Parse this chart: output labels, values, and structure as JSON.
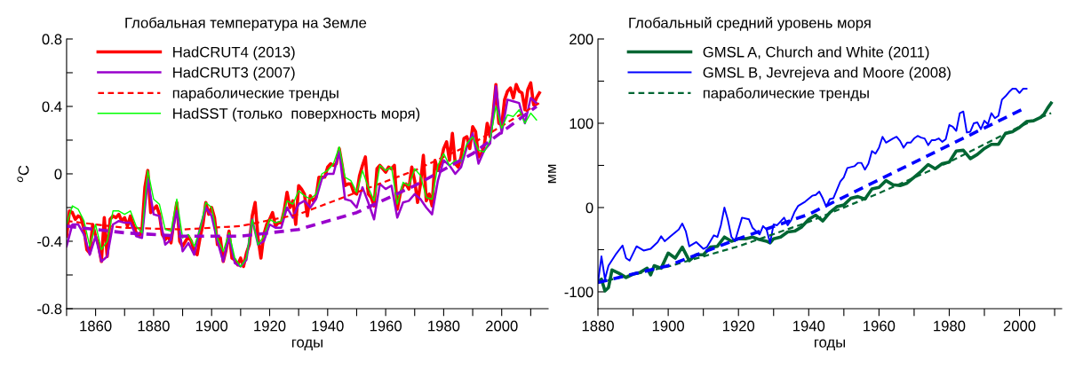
{
  "chart_data": [
    {
      "type": "line",
      "title": "Глобальная температура на Земле",
      "xlabel": "годы",
      "ylabel": "$^{o}$C",
      "xlim": [
        1850,
        2016
      ],
      "ylim": [
        -0.8,
        0.8
      ],
      "xticks": [
        {
          "value": 1850,
          "label": null
        },
        1860,
        {
          "value": 1870,
          "label": null
        },
        1880,
        {
          "value": 1890,
          "label": null
        },
        1900,
        {
          "value": 1910,
          "label": null
        },
        1920,
        {
          "value": 1930,
          "label": null
        },
        1940,
        {
          "value": 1950,
          "label": null
        },
        1960,
        {
          "value": 1970,
          "label": null
        },
        1980,
        {
          "value": 1990,
          "label": null
        },
        2000,
        {
          "value": 2010,
          "label": null
        }
      ],
      "yticks": [
        {
          "value": -0.8,
          "label": "-0.8"
        },
        {
          "value": -0.6,
          "label": null
        },
        {
          "value": -0.4,
          "label": "-0.4"
        },
        {
          "value": -0.2,
          "label": null
        },
        {
          "value": 0,
          "label": "0"
        },
        {
          "value": 0.2,
          "label": null
        },
        {
          "value": 0.4,
          "label": "0.4"
        },
        {
          "value": 0.6,
          "label": null
        },
        {
          "value": 0.8,
          "label": "0.8"
        }
      ],
      "grid": false,
      "legend": "top left",
      "series": [
        {
          "name": "HadCRUT4 (2013)",
          "color": "#ff0000",
          "line_style": "solid",
          "x": [
            1850,
            1851,
            1852,
            1853,
            1854,
            1855,
            1856,
            1857,
            1858,
            1859,
            1860,
            1861,
            1862,
            1863,
            1864,
            1865,
            1866,
            1867,
            1868,
            1869,
            1870,
            1871,
            1872,
            1873,
            1874,
            1875,
            1876,
            1877,
            1878,
            1879,
            1880,
            1881,
            1882,
            1883,
            1884,
            1885,
            1886,
            1887,
            1888,
            1889,
            1890,
            1891,
            1892,
            1893,
            1894,
            1895,
            1896,
            1897,
            1898,
            1899,
            1900,
            1901,
            1902,
            1903,
            1904,
            1905,
            1906,
            1907,
            1908,
            1909,
            1910,
            1911,
            1912,
            1913,
            1914,
            1915,
            1916,
            1917,
            1918,
            1919,
            1920,
            1921,
            1922,
            1923,
            1924,
            1925,
            1926,
            1927,
            1928,
            1929,
            1930,
            1931,
            1932,
            1933,
            1934,
            1935,
            1936,
            1937,
            1938,
            1939,
            1940,
            1941,
            1942,
            1943,
            1944,
            1945,
            1946,
            1947,
            1948,
            1949,
            1950,
            1951,
            1952,
            1953,
            1954,
            1955,
            1956,
            1957,
            1958,
            1959,
            1960,
            1961,
            1962,
            1963,
            1964,
            1965,
            1966,
            1967,
            1968,
            1969,
            1970,
            1971,
            1972,
            1973,
            1974,
            1975,
            1976,
            1977,
            1978,
            1979,
            1980,
            1981,
            1982,
            1983,
            1984,
            1985,
            1986,
            1987,
            1988,
            1989,
            1990,
            1991,
            1992,
            1993,
            1994,
            1995,
            1996,
            1997,
            1998,
            1999,
            2000,
            2001,
            2002,
            2003,
            2004,
            2005,
            2006,
            2007,
            2008,
            2009,
            2010,
            2011,
            2012,
            2013
          ],
          "values": [
            -0.37,
            -0.22,
            -0.23,
            -0.27,
            -0.25,
            -0.26,
            -0.33,
            -0.45,
            -0.47,
            -0.3,
            -0.37,
            -0.42,
            -0.52,
            -0.26,
            -0.49,
            -0.27,
            -0.25,
            -0.26,
            -0.24,
            -0.28,
            -0.26,
            -0.31,
            -0.25,
            -0.3,
            -0.35,
            -0.37,
            -0.33,
            -0.08,
            0.02,
            -0.23,
            -0.21,
            -0.19,
            -0.24,
            -0.36,
            -0.39,
            -0.37,
            -0.41,
            -0.28,
            -0.17,
            -0.4,
            -0.43,
            -0.4,
            -0.37,
            -0.4,
            -0.46,
            -0.48,
            -0.38,
            -0.3,
            -0.17,
            -0.24,
            -0.2,
            -0.26,
            -0.42,
            -0.38,
            -0.52,
            -0.45,
            -0.34,
            -0.5,
            -0.51,
            -0.54,
            -0.5,
            -0.55,
            -0.47,
            -0.42,
            -0.25,
            -0.17,
            -0.38,
            -0.5,
            -0.36,
            -0.3,
            -0.27,
            -0.23,
            -0.31,
            -0.29,
            -0.29,
            -0.22,
            -0.11,
            -0.2,
            -0.16,
            -0.3,
            -0.07,
            -0.09,
            -0.12,
            -0.25,
            -0.13,
            -0.16,
            -0.14,
            -0.02,
            -0.02,
            -0.02,
            0.04,
            0.06,
            0.05,
            0.06,
            0.15,
            0.05,
            -0.07,
            -0.06,
            -0.06,
            -0.11,
            -0.12,
            -0.01,
            0.05,
            0.1,
            -0.12,
            -0.14,
            -0.19,
            0.03,
            0.05,
            0.03,
            0.01,
            0.04,
            0.03,
            0.05,
            -0.21,
            -0.12,
            -0.07,
            -0.06,
            -0.09,
            0.04,
            -0.04,
            -0.17,
            -0.06,
            0.11,
            -0.16,
            -0.12,
            -0.19,
            0.08,
            0.02,
            0.07,
            0.15,
            0.19,
            0.08,
            0.24,
            0.06,
            0.04,
            0.1,
            0.21,
            0.22,
            0.15,
            0.28,
            0.25,
            0.1,
            0.12,
            0.17,
            0.3,
            0.22,
            0.35,
            0.53,
            0.3,
            0.29,
            0.44,
            0.49,
            0.51,
            0.45,
            0.53,
            0.49,
            0.48,
            0.38,
            0.5,
            0.54,
            0.41,
            0.45,
            0.48
          ]
        },
        {
          "name": "HadCRUT3 (2007)",
          "color": "#9900cc",
          "line_style": "solid",
          "x": [
            1850,
            1852,
            1854,
            1856,
            1858,
            1860,
            1862,
            1864,
            1866,
            1868,
            1870,
            1872,
            1874,
            1876,
            1878,
            1880,
            1882,
            1884,
            1886,
            1888,
            1890,
            1892,
            1894,
            1896,
            1898,
            1900,
            1902,
            1904,
            1906,
            1908,
            1910,
            1912,
            1914,
            1916,
            1918,
            1920,
            1922,
            1924,
            1926,
            1928,
            1930,
            1932,
            1934,
            1936,
            1938,
            1940,
            1942,
            1944,
            1946,
            1948,
            1950,
            1952,
            1954,
            1956,
            1958,
            1960,
            1962,
            1964,
            1966,
            1968,
            1970,
            1972,
            1974,
            1976,
            1978,
            1980,
            1982,
            1984,
            1986,
            1988,
            1990,
            1992,
            1994,
            1996,
            1998,
            2000,
            2002,
            2004,
            2006,
            2008,
            2010,
            2012
          ],
          "values": [
            -0.43,
            -0.3,
            -0.3,
            -0.36,
            -0.48,
            -0.37,
            -0.52,
            -0.49,
            -0.3,
            -0.28,
            -0.29,
            -0.29,
            -0.37,
            -0.38,
            -0.03,
            -0.24,
            -0.25,
            -0.42,
            -0.39,
            -0.22,
            -0.46,
            -0.41,
            -0.48,
            -0.32,
            -0.2,
            -0.25,
            -0.4,
            -0.52,
            -0.37,
            -0.53,
            -0.55,
            -0.51,
            -0.27,
            -0.42,
            -0.4,
            -0.3,
            -0.32,
            -0.32,
            -0.2,
            -0.26,
            -0.18,
            -0.16,
            -0.2,
            -0.15,
            -0.03,
            0.0,
            0.0,
            0.13,
            -0.15,
            -0.16,
            -0.2,
            -0.08,
            -0.17,
            -0.27,
            -0.06,
            -0.09,
            -0.07,
            -0.26,
            -0.17,
            -0.16,
            -0.12,
            -0.15,
            -0.2,
            -0.24,
            -0.04,
            0.08,
            0.05,
            0.0,
            0.04,
            0.16,
            0.24,
            0.06,
            0.14,
            0.18,
            0.52,
            0.24,
            0.44,
            0.43,
            0.42,
            0.3,
            0.45,
            0.42
          ]
        },
        {
          "name": "параболические тренды",
          "color": "#ff0000",
          "line_style": "dashed",
          "x": [
            1850,
            1870,
            1890,
            1910,
            1930,
            1950,
            1970,
            1990,
            2013
          ],
          "values": [
            -0.28,
            -0.32,
            -0.33,
            -0.31,
            -0.24,
            -0.11,
            0.02,
            0.18,
            0.42
          ]
        },
        {
          "name": "HadSST (только  поверхность моря)",
          "color": "#00ff00",
          "line_style": "solid",
          "x": [
            1850,
            1852,
            1854,
            1856,
            1858,
            1860,
            1862,
            1864,
            1866,
            1868,
            1870,
            1872,
            1874,
            1876,
            1878,
            1880,
            1882,
            1884,
            1886,
            1888,
            1890,
            1892,
            1894,
            1896,
            1898,
            1900,
            1902,
            1904,
            1906,
            1908,
            1910,
            1912,
            1914,
            1916,
            1918,
            1920,
            1922,
            1924,
            1926,
            1928,
            1930,
            1932,
            1934,
            1936,
            1938,
            1940,
            1942,
            1944,
            1946,
            1948,
            1950,
            1952,
            1954,
            1956,
            1958,
            1960,
            1962,
            1964,
            1966,
            1968,
            1970,
            1972,
            1974,
            1976,
            1978,
            1980,
            1982,
            1984,
            1986,
            1988,
            1990,
            1992,
            1994,
            1996,
            1998,
            2000,
            2002,
            2004,
            2006,
            2008,
            2010,
            2012
          ],
          "values": [
            -0.3,
            -0.19,
            -0.21,
            -0.28,
            -0.43,
            -0.3,
            -0.45,
            -0.4,
            -0.22,
            -0.22,
            -0.24,
            -0.22,
            -0.31,
            -0.35,
            0.02,
            -0.15,
            -0.18,
            -0.33,
            -0.34,
            -0.15,
            -0.38,
            -0.36,
            -0.43,
            -0.33,
            -0.17,
            -0.2,
            -0.38,
            -0.46,
            -0.35,
            -0.5,
            -0.55,
            -0.5,
            -0.27,
            -0.42,
            -0.37,
            -0.27,
            -0.29,
            -0.28,
            -0.16,
            -0.18,
            -0.1,
            -0.13,
            -0.15,
            -0.12,
            0.0,
            0.02,
            0.06,
            0.16,
            -0.02,
            -0.04,
            -0.11,
            0.02,
            -0.08,
            -0.16,
            0.05,
            0.02,
            0.04,
            -0.18,
            -0.05,
            -0.07,
            0.03,
            -0.01,
            -0.14,
            -0.15,
            0.05,
            0.12,
            0.05,
            0.08,
            0.07,
            0.18,
            0.22,
            0.14,
            0.13,
            0.2,
            0.4,
            0.27,
            0.35,
            0.34,
            0.38,
            0.3,
            0.36,
            0.32
          ]
        },
        {
          "color": "#9900cc",
          "line_style": "dashed",
          "x": [
            1850,
            1870,
            1890,
            1910,
            1930,
            1950,
            1970,
            1990,
            2012
          ],
          "values": [
            -0.31,
            -0.35,
            -0.37,
            -0.37,
            -0.33,
            -0.23,
            -0.07,
            0.12,
            0.4
          ]
        }
      ]
    },
    {
      "type": "line",
      "title": "Глобальный средний уровень моря",
      "xlabel": "годы",
      "ylabel": "мм",
      "xlim": [
        1880,
        2012
      ],
      "ylim": [
        -120,
        200
      ],
      "xticks": [
        1880,
        {
          "value": 1890,
          "label": null
        },
        1900,
        {
          "value": 1910,
          "label": null
        },
        1920,
        {
          "value": 1930,
          "label": null
        },
        1940,
        {
          "value": 1950,
          "label": null
        },
        1960,
        {
          "value": 1970,
          "label": null
        },
        1980,
        {
          "value": 1990,
          "label": null
        },
        2000,
        {
          "value": 2010,
          "label": null
        }
      ],
      "yticks": [
        -100,
        {
          "value": -50,
          "label": null
        },
        0,
        {
          "value": 50,
          "label": null
        },
        100,
        {
          "value": 150,
          "label": null
        },
        200
      ],
      "grid": false,
      "legend": "top left",
      "series": [
        {
          "name": "GMSL A, Church and White (2011)",
          "color": "#006633",
          "line_style": "solid",
          "x": [
            1880,
            1881,
            1882,
            1883,
            1884,
            1886,
            1888,
            1890,
            1892,
            1894,
            1895,
            1896,
            1898,
            1900,
            1902,
            1904,
            1906,
            1908,
            1910,
            1912,
            1914,
            1916,
            1918,
            1920,
            1922,
            1924,
            1926,
            1928,
            1929,
            1930,
            1932,
            1934,
            1936,
            1938,
            1940,
            1942,
            1944,
            1946,
            1948,
            1950,
            1952,
            1954,
            1956,
            1958,
            1960,
            1962,
            1964,
            1966,
            1968,
            1970,
            1972,
            1974,
            1976,
            1978,
            1980,
            1982,
            1984,
            1986,
            1988,
            1990,
            1992,
            1994,
            1996,
            1998,
            2000,
            2002,
            2004,
            2006,
            2007,
            2008,
            2009
          ],
          "values": [
            -88,
            -85,
            -99,
            -95,
            -74,
            -78,
            -83,
            -79,
            -77,
            -72,
            -80,
            -69,
            -72,
            -54,
            -60,
            -47,
            -63,
            -56,
            -56,
            -47,
            -46,
            -35,
            -40,
            -37,
            -37,
            -35,
            -38,
            -40,
            -42,
            -37,
            -35,
            -29,
            -28,
            -23,
            -14,
            -9,
            -16,
            -6,
            1,
            3,
            11,
            13,
            10,
            22,
            24,
            32,
            27,
            26,
            29,
            36,
            43,
            51,
            46,
            52,
            54,
            67,
            68,
            58,
            63,
            70,
            75,
            75,
            88,
            90,
            95,
            102,
            103,
            107,
            111,
            118,
            124
          ]
        },
        {
          "name": "GMSL B, Jevrejeva and Moore (2008)",
          "color": "#0000ff",
          "line_style": "solid",
          "x": [
            1880,
            1881,
            1882,
            1883,
            1885,
            1887,
            1888,
            1889,
            1891,
            1893,
            1895,
            1897,
            1898,
            1899,
            1901,
            1903,
            1904,
            1905,
            1906,
            1908,
            1910,
            1911,
            1913,
            1914,
            1915,
            1916,
            1917,
            1918,
            1919,
            1921,
            1923,
            1924,
            1926,
            1927,
            1928,
            1929,
            1930,
            1931,
            1933,
            1934,
            1935,
            1936,
            1937,
            1939,
            1941,
            1942,
            1943,
            1944,
            1945,
            1946,
            1947,
            1949,
            1950,
            1951,
            1953,
            1954,
            1955,
            1956,
            1957,
            1958,
            1959,
            1960,
            1961,
            1962,
            1964,
            1965,
            1966,
            1967,
            1968,
            1969,
            1970,
            1971,
            1972,
            1973,
            1974,
            1975,
            1976,
            1977,
            1978,
            1979,
            1980,
            1981,
            1982,
            1983,
            1984,
            1985,
            1986,
            1987,
            1988,
            1989,
            1990,
            1991,
            1992,
            1993,
            1994,
            1995,
            1996,
            1997,
            1998,
            1999,
            2000,
            2001,
            2002
          ],
          "values": [
            -89,
            -58,
            -85,
            -69,
            -56,
            -45,
            -60,
            -63,
            -46,
            -51,
            -49,
            -41,
            -34,
            -40,
            -33,
            -26,
            -19,
            -28,
            -46,
            -41,
            -49,
            -47,
            -33,
            -35,
            -21,
            0,
            -15,
            -35,
            -40,
            -12,
            -14,
            -24,
            -32,
            -22,
            -26,
            -42,
            -20,
            -21,
            -12,
            -21,
            -15,
            -5,
            2,
            7,
            14,
            15,
            19,
            11,
            1,
            10,
            11,
            31,
            36,
            47,
            49,
            53,
            53,
            45,
            52,
            67,
            64,
            71,
            84,
            77,
            82,
            84,
            79,
            71,
            77,
            77,
            82,
            85,
            83,
            82,
            74,
            80,
            80,
            82,
            78,
            81,
            98,
            96,
            91,
            112,
            114,
            89,
            90,
            100,
            101,
            93,
            103,
            99,
            112,
            106,
            109,
            128,
            132,
            137,
            141,
            141,
            136,
            141,
            141
          ]
        },
        {
          "name": "параболические тренды",
          "color": "#006633",
          "line_style": "dashed",
          "x": [
            1880,
            1900,
            1920,
            1940,
            1960,
            1980,
            2000,
            2009
          ],
          "values": [
            -89,
            -70,
            -46,
            -17,
            17,
            54,
            96,
            112
          ]
        },
        {
          "color": "#0000ff",
          "line_style": "dashed",
          "x": [
            1880,
            1900,
            1920,
            1940,
            1960,
            1980,
            2001
          ],
          "values": [
            -89,
            -69,
            -37,
            -8,
            33,
            74,
            117
          ]
        }
      ]
    }
  ]
}
